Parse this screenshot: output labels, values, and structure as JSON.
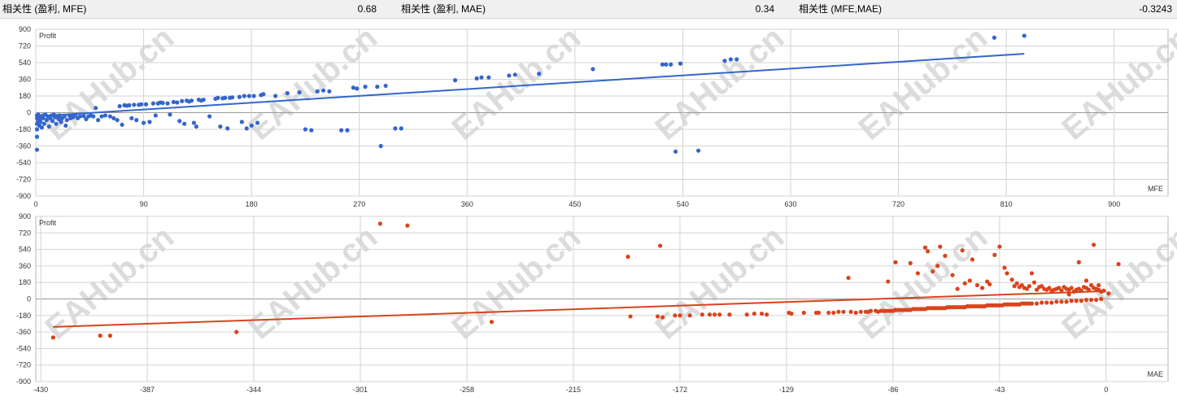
{
  "correlations": [
    {
      "label": "相关性 (盈利, MFE)",
      "value": "0.68"
    },
    {
      "label": "相关性 (盈利, MAE)",
      "value": "0.34"
    },
    {
      "label": "相关性 (MFE,MAE)",
      "value": "-0.3243"
    }
  ],
  "watermark": "EAHub.cn",
  "colors": {
    "mfe": "#3366cc",
    "mae": "#d9441c",
    "grid": "#d3d3d3"
  },
  "chart_data": [
    {
      "type": "scatter",
      "ylabel": "Profit",
      "xlabel": "MFE",
      "xlim": [
        0,
        945
      ],
      "ylim": [
        -900,
        900
      ],
      "x_ticks": [
        0,
        90,
        180,
        270,
        360,
        450,
        540,
        630,
        720,
        810,
        900
      ],
      "y_ticks": [
        900,
        720,
        540,
        360,
        180,
        0,
        -180,
        -360,
        -540,
        -720,
        -900
      ],
      "trend": [
        [
          0,
          -40
        ],
        [
          825,
          635
        ]
      ],
      "points": [
        [
          1,
          -30
        ],
        [
          1,
          -60
        ],
        [
          1,
          -120
        ],
        [
          1,
          -180
        ],
        [
          1,
          -260
        ],
        [
          1,
          -400
        ],
        [
          2,
          -20
        ],
        [
          2,
          -90
        ],
        [
          3,
          -140
        ],
        [
          3,
          -70
        ],
        [
          4,
          -40
        ],
        [
          4,
          -100
        ],
        [
          5,
          -160
        ],
        [
          6,
          -30
        ],
        [
          6,
          -60
        ],
        [
          7,
          -120
        ],
        [
          8,
          -20
        ],
        [
          9,
          -80
        ],
        [
          10,
          -40
        ],
        [
          11,
          -150
        ],
        [
          12,
          -60
        ],
        [
          13,
          -30
        ],
        [
          14,
          -90
        ],
        [
          15,
          -20
        ],
        [
          16,
          -50
        ],
        [
          17,
          -120
        ],
        [
          18,
          -40
        ],
        [
          19,
          -70
        ],
        [
          20,
          -30
        ],
        [
          21,
          -100
        ],
        [
          22,
          -60
        ],
        [
          24,
          -40
        ],
        [
          25,
          -140
        ],
        [
          26,
          -80
        ],
        [
          28,
          -30
        ],
        [
          29,
          -60
        ],
        [
          30,
          -40
        ],
        [
          31,
          -50
        ],
        [
          33,
          -30
        ],
        [
          35,
          -60
        ],
        [
          37,
          -40
        ],
        [
          40,
          -35
        ],
        [
          42,
          -70
        ],
        [
          44,
          -40
        ],
        [
          46,
          -30
        ],
        [
          48,
          -40
        ],
        [
          50,
          50
        ],
        [
          52,
          -80
        ],
        [
          55,
          -40
        ],
        [
          58,
          -30
        ],
        [
          62,
          -40
        ],
        [
          65,
          -60
        ],
        [
          68,
          -80
        ],
        [
          70,
          70
        ],
        [
          72,
          -130
        ],
        [
          74,
          80
        ],
        [
          76,
          75
        ],
        [
          78,
          80
        ],
        [
          80,
          -60
        ],
        [
          82,
          85
        ],
        [
          84,
          -80
        ],
        [
          86,
          85
        ],
        [
          88,
          90
        ],
        [
          90,
          -110
        ],
        [
          92,
          90
        ],
        [
          95,
          -100
        ],
        [
          98,
          100
        ],
        [
          100,
          -30
        ],
        [
          102,
          100
        ],
        [
          104,
          110
        ],
        [
          106,
          105
        ],
        [
          110,
          100
        ],
        [
          112,
          -20
        ],
        [
          115,
          115
        ],
        [
          118,
          110
        ],
        [
          120,
          -90
        ],
        [
          122,
          125
        ],
        [
          124,
          -120
        ],
        [
          126,
          130
        ],
        [
          128,
          120
        ],
        [
          130,
          130
        ],
        [
          132,
          -110
        ],
        [
          134,
          -150
        ],
        [
          136,
          140
        ],
        [
          138,
          130
        ],
        [
          140,
          140
        ],
        [
          145,
          -40
        ],
        [
          150,
          150
        ],
        [
          152,
          160
        ],
        [
          154,
          -150
        ],
        [
          156,
          155
        ],
        [
          158,
          160
        ],
        [
          160,
          -170
        ],
        [
          162,
          160
        ],
        [
          164,
          165
        ],
        [
          170,
          170
        ],
        [
          172,
          -100
        ],
        [
          174,
          180
        ],
        [
          176,
          -170
        ],
        [
          178,
          180
        ],
        [
          180,
          -140
        ],
        [
          182,
          180
        ],
        [
          185,
          -110
        ],
        [
          188,
          190
        ],
        [
          190,
          200
        ],
        [
          200,
          180
        ],
        [
          210,
          210
        ],
        [
          220,
          220
        ],
        [
          225,
          -180
        ],
        [
          230,
          -190
        ],
        [
          235,
          230
        ],
        [
          240,
          240
        ],
        [
          245,
          230
        ],
        [
          255,
          -190
        ],
        [
          260,
          -190
        ],
        [
          265,
          270
        ],
        [
          268,
          260
        ],
        [
          275,
          280
        ],
        [
          285,
          280
        ],
        [
          288,
          -360
        ],
        [
          292,
          290
        ],
        [
          300,
          -170
        ],
        [
          305,
          -170
        ],
        [
          350,
          350
        ],
        [
          368,
          370
        ],
        [
          372,
          380
        ],
        [
          378,
          380
        ],
        [
          395,
          400
        ],
        [
          400,
          410
        ],
        [
          420,
          420
        ],
        [
          465,
          470
        ],
        [
          523,
          520
        ],
        [
          526,
          520
        ],
        [
          530,
          520
        ],
        [
          538,
          530
        ],
        [
          534,
          -420
        ],
        [
          553,
          -410
        ],
        [
          575,
          560
        ],
        [
          580,
          575
        ],
        [
          585,
          575
        ],
        [
          800,
          810
        ],
        [
          825,
          830
        ]
      ]
    },
    {
      "type": "scatter",
      "ylabel": "Profit",
      "xlabel": "MAE",
      "xlim": [
        -432,
        25
      ],
      "ylim": [
        -900,
        900
      ],
      "x_ticks": [
        -430,
        -387,
        -344,
        -301,
        -258,
        -215,
        -172,
        -129,
        -86,
        -43,
        0
      ],
      "y_ticks": [
        900,
        720,
        540,
        360,
        180,
        0,
        -180,
        -360,
        -540,
        -720,
        -900
      ],
      "trend": [
        [
          -425,
          -305
        ],
        [
          0,
          85
        ]
      ],
      "points": [
        [
          -425,
          -420
        ],
        [
          -406,
          -400
        ],
        [
          -402,
          -400
        ],
        [
          -351,
          -360
        ],
        [
          -293,
          820
        ],
        [
          -282,
          800
        ],
        [
          -248,
          -250
        ],
        [
          -193,
          460
        ],
        [
          -192,
          -190
        ],
        [
          -181,
          -190
        ],
        [
          -180,
          580
        ],
        [
          -179,
          -200
        ],
        [
          -174,
          -180
        ],
        [
          -172,
          -180
        ],
        [
          -168,
          -180
        ],
        [
          -163,
          -170
        ],
        [
          -160,
          -170
        ],
        [
          -158,
          -170
        ],
        [
          -156,
          -170
        ],
        [
          -152,
          -170
        ],
        [
          -145,
          -170
        ],
        [
          -142,
          -160
        ],
        [
          -139,
          -160
        ],
        [
          -137,
          -170
        ],
        [
          -128,
          -150
        ],
        [
          -127,
          -160
        ],
        [
          -122,
          -150
        ],
        [
          -117,
          -150
        ],
        [
          -116,
          -150
        ],
        [
          -112,
          -150
        ],
        [
          -110,
          -150
        ],
        [
          -108,
          -140
        ],
        [
          -106,
          -140
        ],
        [
          -104,
          230
        ],
        [
          -103,
          -140
        ],
        [
          -101,
          -150
        ],
        [
          -99,
          -140
        ],
        [
          -97,
          -140
        ],
        [
          -96,
          -140
        ],
        [
          -95,
          -130
        ],
        [
          -93,
          -130
        ],
        [
          -92,
          -140
        ],
        [
          -91,
          -130
        ],
        [
          -90,
          -130
        ],
        [
          -89,
          -130
        ],
        [
          -88,
          -130
        ],
        [
          -87,
          -130
        ],
        [
          -86,
          -130
        ],
        [
          -85,
          -120
        ],
        [
          -84,
          -120
        ],
        [
          -83,
          -120
        ],
        [
          -82,
          -120
        ],
        [
          -81,
          -120
        ],
        [
          -80,
          -120
        ],
        [
          -79,
          -120
        ],
        [
          -78,
          -110
        ],
        [
          -77,
          -110
        ],
        [
          -76,
          -110
        ],
        [
          -75,
          -110
        ],
        [
          -74,
          -110
        ],
        [
          -73,
          -110
        ],
        [
          -72,
          -100
        ],
        [
          -71,
          -100
        ],
        [
          -70,
          -100
        ],
        [
          -69,
          -100
        ],
        [
          -68,
          -100
        ],
        [
          -67,
          -100
        ],
        [
          -66,
          -100
        ],
        [
          -65,
          -100
        ],
        [
          -64,
          -90
        ],
        [
          -63,
          -90
        ],
        [
          -62,
          -90
        ],
        [
          -61,
          -90
        ],
        [
          -60,
          -90
        ],
        [
          -59,
          -90
        ],
        [
          -58,
          -90
        ],
        [
          -57,
          -90
        ],
        [
          -56,
          -80
        ],
        [
          -55,
          -80
        ],
        [
          -54,
          -80
        ],
        [
          -53,
          -80
        ],
        [
          -52,
          -80
        ],
        [
          -51,
          -80
        ],
        [
          -50,
          -80
        ],
        [
          -49,
          -80
        ],
        [
          -48,
          -70
        ],
        [
          -47,
          -70
        ],
        [
          -46,
          -70
        ],
        [
          -45,
          -70
        ],
        [
          -44,
          -70
        ],
        [
          -43,
          -70
        ],
        [
          -42,
          -70
        ],
        [
          -41,
          -60
        ],
        [
          -40,
          -60
        ],
        [
          -39,
          -60
        ],
        [
          -38,
          -60
        ],
        [
          -37,
          -60
        ],
        [
          -36,
          -60
        ],
        [
          -35,
          -60
        ],
        [
          -34,
          -50
        ],
        [
          -33,
          -50
        ],
        [
          -32,
          -50
        ],
        [
          -31,
          -50
        ],
        [
          -30,
          -50
        ],
        [
          -28,
          -50
        ],
        [
          -26,
          -40
        ],
        [
          -24,
          -40
        ],
        [
          -22,
          -40
        ],
        [
          -20,
          -30
        ],
        [
          -18,
          -30
        ],
        [
          -16,
          -30
        ],
        [
          -14,
          -20
        ],
        [
          -12,
          -20
        ],
        [
          -10,
          -20
        ],
        [
          -8,
          -10
        ],
        [
          -6,
          -10
        ],
        [
          -4,
          -10
        ],
        [
          -2,
          0
        ],
        [
          -88,
          190
        ],
        [
          -85,
          400
        ],
        [
          -79,
          390
        ],
        [
          -76,
          280
        ],
        [
          -73,
          560
        ],
        [
          -72,
          520
        ],
        [
          -70,
          300
        ],
        [
          -68,
          360
        ],
        [
          -67,
          570
        ],
        [
          -65,
          470
        ],
        [
          -62,
          260
        ],
        [
          -60,
          110
        ],
        [
          -58,
          530
        ],
        [
          -57,
          170
        ],
        [
          -55,
          200
        ],
        [
          -54,
          430
        ],
        [
          -52,
          150
        ],
        [
          -50,
          120
        ],
        [
          -48,
          190
        ],
        [
          -47,
          160
        ],
        [
          -45,
          480
        ],
        [
          -43,
          570
        ],
        [
          -41,
          340
        ],
        [
          -40,
          280
        ],
        [
          -38,
          210
        ],
        [
          -37,
          140
        ],
        [
          -36,
          170
        ],
        [
          -35,
          130
        ],
        [
          -34,
          150
        ],
        [
          -33,
          120
        ],
        [
          -32,
          110
        ],
        [
          -31,
          140
        ],
        [
          -30,
          280
        ],
        [
          -29,
          180
        ],
        [
          -28,
          100
        ],
        [
          -27,
          130
        ],
        [
          -26,
          140
        ],
        [
          -25,
          110
        ],
        [
          -24,
          100
        ],
        [
          -23,
          120
        ],
        [
          -22,
          90
        ],
        [
          -21,
          100
        ],
        [
          -20,
          110
        ],
        [
          -19,
          120
        ],
        [
          -18,
          90
        ],
        [
          -17,
          130
        ],
        [
          -16,
          110
        ],
        [
          -15,
          100
        ],
        [
          -14,
          120
        ],
        [
          -13,
          80
        ],
        [
          -12,
          100
        ],
        [
          -11,
          110
        ],
        [
          -10,
          90
        ],
        [
          -9,
          130
        ],
        [
          -8,
          120
        ],
        [
          -7,
          100
        ],
        [
          -6,
          150
        ],
        [
          -5,
          120
        ],
        [
          -4,
          110
        ],
        [
          -3,
          100
        ],
        [
          -2,
          80
        ],
        [
          -15,
          50
        ],
        [
          -11,
          400
        ],
        [
          -8,
          200
        ],
        [
          -5,
          590
        ],
        [
          -3,
          150
        ],
        [
          -1,
          90
        ],
        [
          1,
          60
        ],
        [
          5,
          380
        ]
      ]
    }
  ]
}
